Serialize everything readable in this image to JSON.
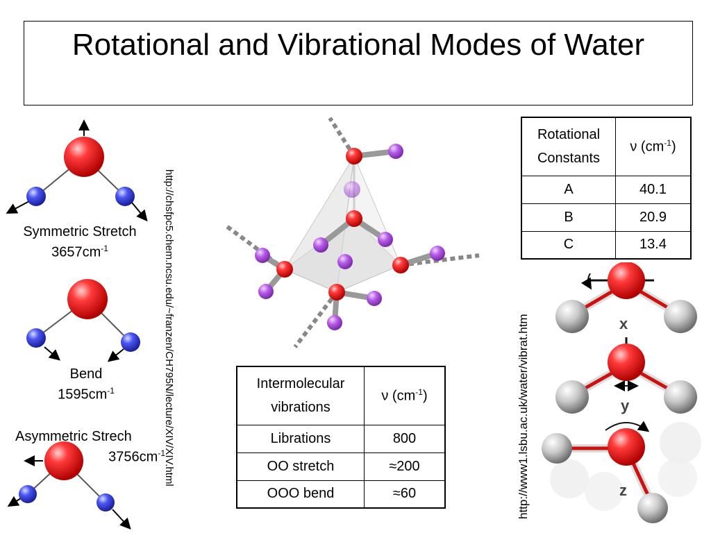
{
  "title": "Rotational and Vibrational Modes of Water",
  "modes": [
    {
      "name": "Symmetric Stretch",
      "freq": "3657cm",
      "unit_exp": "-1"
    },
    {
      "name": "Bend",
      "freq": "1595cm",
      "unit_exp": "-1"
    },
    {
      "name": "Asymmetric Strech",
      "freq": "3756cm",
      "unit_exp": "-1"
    }
  ],
  "links": {
    "left": "http://chsfpc5.chem.ncsu.edu/~franzen/CH795N/lecture/XIV/XIV.html",
    "right": "http://www1.lsbu.ac.uk/water/vibrat.htm"
  },
  "rot_table": {
    "header_col1_line1": "Rotational",
    "header_col1_line2": "Constants",
    "header_col2": "ν (cm",
    "header_col2_exp": "-1",
    "header_col2_close": ")",
    "rows": [
      {
        "label": "A",
        "value": "40.1"
      },
      {
        "label": "B",
        "value": "20.9"
      },
      {
        "label": "C",
        "value": "13.4"
      }
    ]
  },
  "vib_table": {
    "header_col1_line1": "Intermolecular",
    "header_col1_line2": "vibrations",
    "header_col2": "ν (cm",
    "header_col2_exp": "-1",
    "header_col2_close": ")",
    "rows": [
      {
        "label": "Librations",
        "value": "800"
      },
      {
        "label": "OO stretch",
        "value": "≈200"
      },
      {
        "label": "OOO bend",
        "value": "≈60"
      }
    ]
  },
  "axes": {
    "x": "x",
    "y": "y",
    "z": "z"
  },
  "colors": {
    "oxygen": "#e0161c",
    "hydrogen": "#3b3fe0",
    "purple_h": "#b04fe0",
    "grey_h": "#c8c8c8"
  }
}
